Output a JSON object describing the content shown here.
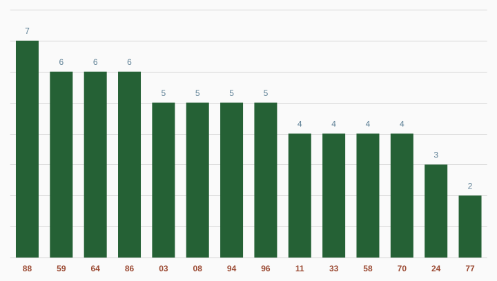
{
  "chart_data": {
    "type": "bar",
    "categories": [
      "88",
      "59",
      "64",
      "86",
      "03",
      "08",
      "94",
      "96",
      "11",
      "33",
      "58",
      "70",
      "24",
      "77"
    ],
    "values": [
      7,
      6,
      6,
      6,
      5,
      5,
      5,
      5,
      4,
      4,
      4,
      4,
      3,
      2
    ],
    "color": "#256135",
    "ylim": [
      0,
      8
    ],
    "yticks": [
      0,
      1,
      2,
      3,
      4,
      5,
      6,
      7,
      8
    ],
    "grid": true
  }
}
